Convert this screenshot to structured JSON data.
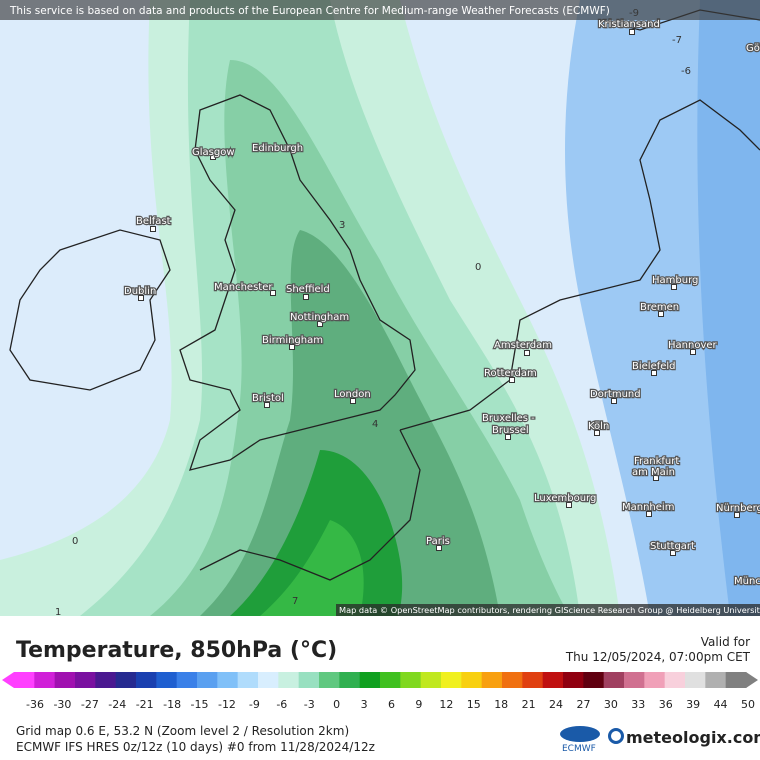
{
  "header": {
    "notice": "This service is based on data and products of the European Centre for Medium-range Weather Forecasts (ECMWF)"
  },
  "map": {
    "cities": [
      "Kristiansand",
      "Göteborg",
      "Glasgow",
      "Edinburgh",
      "Belfast",
      "Dublin",
      "Manchester",
      "Sheffield",
      "Nottingham",
      "Birmingham",
      "Bristol",
      "London",
      "Amsterdam",
      "Rotterdam",
      "Bruxelles -",
      "Brussel",
      "Luxembourg",
      "Paris",
      "Hamburg",
      "Bremen",
      "Hannover",
      "Bielefeld",
      "Dortmund",
      "Köln",
      "Frankfurt",
      "am Main",
      "Mannheim",
      "Stuttgart",
      "Nürnberg",
      "München"
    ],
    "contour_labels": [
      "-9",
      "-7",
      "-6",
      "0",
      "3",
      "4",
      "0",
      "7",
      "1"
    ],
    "attribution": "Map data © OpenStreetMap contributors, rendering GIScience Research Group @ Heidelberg University"
  },
  "title": "Temperature, 850hPa (°C)",
  "valid": {
    "label": "Valid for",
    "time": "Thu 12/05/2024, 07:00pm CET"
  },
  "legend": {
    "ticks": [
      -36,
      -30,
      -27,
      -24,
      -21,
      -18,
      -15,
      -12,
      -9,
      -6,
      -3,
      0,
      3,
      6,
      9,
      12,
      15,
      18,
      21,
      24,
      27,
      30,
      33,
      36,
      39,
      44,
      50
    ],
    "colors": [
      "#ff40ff",
      "#d020d8",
      "#a010b0",
      "#7a10a0",
      "#4a1890",
      "#262a90",
      "#1a40b0",
      "#1f5fd0",
      "#3a80e8",
      "#5aa0f0",
      "#80c0f8",
      "#b0dcfc",
      "#d8eefe",
      "#c8f0e0",
      "#98e0c0",
      "#60c880",
      "#30b050",
      "#10a020",
      "#40c020",
      "#80d820",
      "#c0e820",
      "#f0f020",
      "#f8d010",
      "#f8a010",
      "#f07010",
      "#e04010",
      "#c01010",
      "#900010",
      "#600010",
      "#a04060",
      "#d07090",
      "#f0a0b8",
      "#f8d0dc",
      "#e0e0e0",
      "#b0b0b0",
      "#808080"
    ]
  },
  "footer": {
    "grid": "Grid map 0.6 E, 53.2 N (Zoom level 2 / Resolution 2km)",
    "model": "ECMWF IFS HRES 0z/12z (10 days) #0 from  11/28/2024/12z"
  },
  "logos": {
    "ecmwf": "ECMWF",
    "meteologix": "meteologix.com"
  }
}
